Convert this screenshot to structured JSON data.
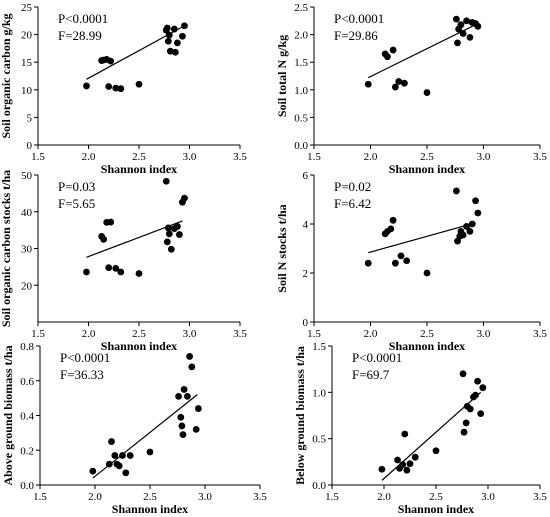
{
  "chart_data": [
    {
      "type": "scatter",
      "xlabel": "Shannon index",
      "ylabel": "Soil organic carbon g/kg",
      "xlim": [
        1.5,
        3.5
      ],
      "ylim": [
        0,
        25
      ],
      "xticks": [
        "1.5",
        "2.0",
        "2.5",
        "3.0",
        "3.5"
      ],
      "yticks": [
        "0",
        "5",
        "10",
        "15",
        "20",
        "25"
      ],
      "annotations": [
        "P<0.0001",
        "F=28.99"
      ],
      "fit_line": [
        [
          1.98,
          11.9
        ],
        [
          2.93,
          21.4
        ]
      ],
      "points": [
        [
          1.98,
          10.7
        ],
        [
          2.13,
          15.3
        ],
        [
          2.15,
          15.4
        ],
        [
          2.18,
          15.5
        ],
        [
          2.22,
          15.2
        ],
        [
          2.2,
          10.6
        ],
        [
          2.27,
          10.3
        ],
        [
          2.32,
          10.2
        ],
        [
          2.5,
          11.0
        ],
        [
          2.77,
          20.8
        ],
        [
          2.78,
          21.2
        ],
        [
          2.79,
          18.8
        ],
        [
          2.8,
          19.9
        ],
        [
          2.81,
          17.0
        ],
        [
          2.85,
          21.0
        ],
        [
          2.86,
          16.8
        ],
        [
          2.88,
          18.5
        ],
        [
          2.93,
          19.7
        ],
        [
          2.95,
          21.6
        ]
      ]
    },
    {
      "type": "scatter",
      "xlabel": "Shannon index",
      "ylabel": "Soil total N g/kg",
      "xlim": [
        1.5,
        3.5
      ],
      "ylim": [
        0,
        2.5
      ],
      "xticks": [
        "1.5",
        "2.0",
        "2.5",
        "3.0",
        "3.5"
      ],
      "yticks": [
        "0.0",
        "0.5",
        "1.0",
        "1.5",
        "2.0",
        "2.5"
      ],
      "annotations": [
        "P<0.0001",
        "F=29.86"
      ],
      "fit_line": [
        [
          1.98,
          1.22
        ],
        [
          2.93,
          2.18
        ]
      ],
      "points": [
        [
          1.98,
          1.1
        ],
        [
          2.13,
          1.65
        ],
        [
          2.15,
          1.6
        ],
        [
          2.2,
          1.72
        ],
        [
          2.22,
          1.05
        ],
        [
          2.25,
          1.15
        ],
        [
          2.3,
          1.12
        ],
        [
          2.5,
          0.95
        ],
        [
          2.76,
          2.28
        ],
        [
          2.77,
          1.85
        ],
        [
          2.78,
          2.1
        ],
        [
          2.8,
          2.18
        ],
        [
          2.82,
          2.02
        ],
        [
          2.85,
          2.25
        ],
        [
          2.88,
          1.95
        ],
        [
          2.9,
          2.22
        ],
        [
          2.93,
          2.2
        ],
        [
          2.95,
          2.15
        ]
      ]
    },
    {
      "type": "scatter",
      "xlabel": "Shannon index",
      "ylabel": "Soil organic carbon stocks t/ha",
      "xlim": [
        1.5,
        3.5
      ],
      "ylim": [
        10,
        50
      ],
      "xticks": [
        "1.5",
        "2.0",
        "2.5",
        "3.0",
        "3.5"
      ],
      "yticks": [
        "20",
        "30",
        "40",
        "50"
      ],
      "annotations": [
        "P=0.03",
        "F=5.65"
      ],
      "fit_line": [
        [
          1.98,
          27.6
        ],
        [
          2.93,
          37.5
        ]
      ],
      "points": [
        [
          1.98,
          23.6
        ],
        [
          2.13,
          33.3
        ],
        [
          2.15,
          32.5
        ],
        [
          2.18,
          37.1
        ],
        [
          2.22,
          37.2
        ],
        [
          2.2,
          24.8
        ],
        [
          2.27,
          24.6
        ],
        [
          2.32,
          23.6
        ],
        [
          2.5,
          23.2
        ],
        [
          2.77,
          48.3
        ],
        [
          2.78,
          31.8
        ],
        [
          2.79,
          35.6
        ],
        [
          2.8,
          34.0
        ],
        [
          2.82,
          29.8
        ],
        [
          2.85,
          35.4
        ],
        [
          2.88,
          36.0
        ],
        [
          2.9,
          33.8
        ],
        [
          2.93,
          42.6
        ],
        [
          2.95,
          43.7
        ]
      ]
    },
    {
      "type": "scatter",
      "xlabel": "Shannon index",
      "ylabel": "Soil N stocks t/ha",
      "xlim": [
        1.5,
        3.5
      ],
      "ylim": [
        0,
        6
      ],
      "xticks": [
        "1.5",
        "2.0",
        "2.5",
        "3.0",
        "3.5"
      ],
      "yticks": [
        "0",
        "2",
        "4",
        "6"
      ],
      "annotations": [
        "P=0.02",
        "F=6.42"
      ],
      "fit_line": [
        [
          1.98,
          2.83
        ],
        [
          2.93,
          4.05
        ]
      ],
      "points": [
        [
          1.98,
          2.4
        ],
        [
          2.13,
          3.6
        ],
        [
          2.15,
          3.7
        ],
        [
          2.18,
          3.8
        ],
        [
          2.2,
          4.15
        ],
        [
          2.22,
          2.4
        ],
        [
          2.27,
          2.7
        ],
        [
          2.32,
          2.5
        ],
        [
          2.5,
          2.0
        ],
        [
          2.76,
          5.35
        ],
        [
          2.77,
          3.3
        ],
        [
          2.79,
          3.5
        ],
        [
          2.8,
          3.7
        ],
        [
          2.82,
          3.55
        ],
        [
          2.85,
          3.9
        ],
        [
          2.88,
          3.7
        ],
        [
          2.9,
          4.0
        ],
        [
          2.93,
          4.95
        ],
        [
          2.95,
          4.45
        ]
      ]
    },
    {
      "type": "scatter",
      "xlabel": "Shannon index",
      "ylabel": "Above ground biomass t/ha",
      "xlim": [
        1.5,
        3.5
      ],
      "ylim": [
        0,
        0.8
      ],
      "xticks": [
        "1.5",
        "2.0",
        "2.5",
        "3.0",
        "3.5"
      ],
      "yticks": [
        "0.0",
        "0.2",
        "0.4",
        "0.6",
        "0.8"
      ],
      "annotations": [
        "P<0.0001",
        "F=36.33"
      ],
      "fit_line": [
        [
          1.98,
          0.04
        ],
        [
          2.93,
          0.52
        ]
      ],
      "points": [
        [
          1.98,
          0.08
        ],
        [
          2.13,
          0.12
        ],
        [
          2.15,
          0.25
        ],
        [
          2.18,
          0.17
        ],
        [
          2.2,
          0.12
        ],
        [
          2.22,
          0.11
        ],
        [
          2.25,
          0.17
        ],
        [
          2.28,
          0.07
        ],
        [
          2.32,
          0.17
        ],
        [
          2.5,
          0.19
        ],
        [
          2.76,
          0.51
        ],
        [
          2.78,
          0.39
        ],
        [
          2.79,
          0.34
        ],
        [
          2.8,
          0.29
        ],
        [
          2.81,
          0.55
        ],
        [
          2.84,
          0.51
        ],
        [
          2.86,
          0.74
        ],
        [
          2.88,
          0.68
        ],
        [
          2.92,
          0.32
        ],
        [
          2.94,
          0.44
        ]
      ]
    },
    {
      "type": "scatter",
      "xlabel": "Shannon index",
      "ylabel": "Below ground biomass t/ha",
      "xlim": [
        1.5,
        3.5
      ],
      "ylim": [
        0,
        1.5
      ],
      "xticks": [
        "1.5",
        "2.0",
        "2.5",
        "3.0",
        "3.5"
      ],
      "yticks": [
        "0.0",
        "0.5",
        "1.0",
        "1.5"
      ],
      "annotations": [
        "P<0.0001",
        "F=69.7"
      ],
      "fit_line": [
        [
          1.98,
          0.05
        ],
        [
          2.93,
          1.0
        ]
      ],
      "points": [
        [
          1.98,
          0.17
        ],
        [
          2.13,
          0.27
        ],
        [
          2.15,
          0.18
        ],
        [
          2.18,
          0.22
        ],
        [
          2.2,
          0.55
        ],
        [
          2.22,
          0.16
        ],
        [
          2.25,
          0.23
        ],
        [
          2.3,
          0.3
        ],
        [
          2.5,
          0.37
        ],
        [
          2.76,
          1.2
        ],
        [
          2.77,
          0.57
        ],
        [
          2.79,
          0.67
        ],
        [
          2.8,
          0.85
        ],
        [
          2.83,
          0.82
        ],
        [
          2.86,
          0.95
        ],
        [
          2.88,
          0.97
        ],
        [
          2.9,
          1.12
        ],
        [
          2.93,
          0.77
        ],
        [
          2.95,
          1.05
        ]
      ]
    }
  ]
}
